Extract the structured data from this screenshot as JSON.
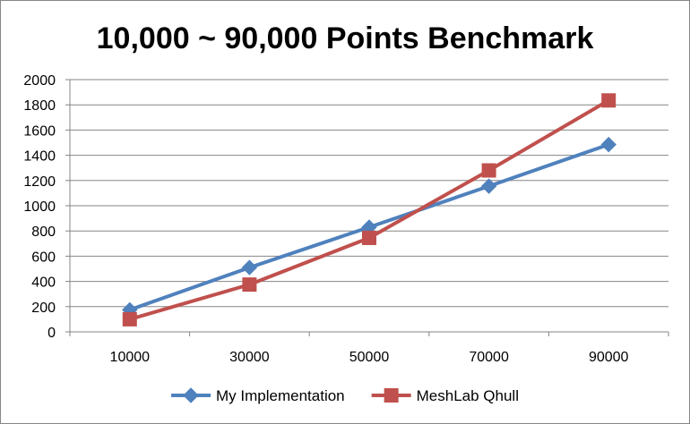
{
  "chart_data": {
    "type": "line",
    "title": "10,000 ~ 90,000 Points Benchmark",
    "xlabel": "",
    "ylabel": "",
    "categories": [
      "10000",
      "30000",
      "50000",
      "70000",
      "90000"
    ],
    "ylim": [
      0,
      2000
    ],
    "yticks": [
      "0",
      "200",
      "400",
      "600",
      "800",
      "1000",
      "1200",
      "1400",
      "1600",
      "1800",
      "2000"
    ],
    "grid": true,
    "legend_position": "bottom",
    "series": [
      {
        "name": "My Implementation",
        "color": "#4F81BD",
        "marker": "diamond",
        "values": [
          175,
          510,
          830,
          1155,
          1485
        ]
      },
      {
        "name": "MeshLab Qhull",
        "color": "#C0504D",
        "marker": "square",
        "values": [
          100,
          375,
          745,
          1280,
          1835
        ]
      }
    ]
  }
}
